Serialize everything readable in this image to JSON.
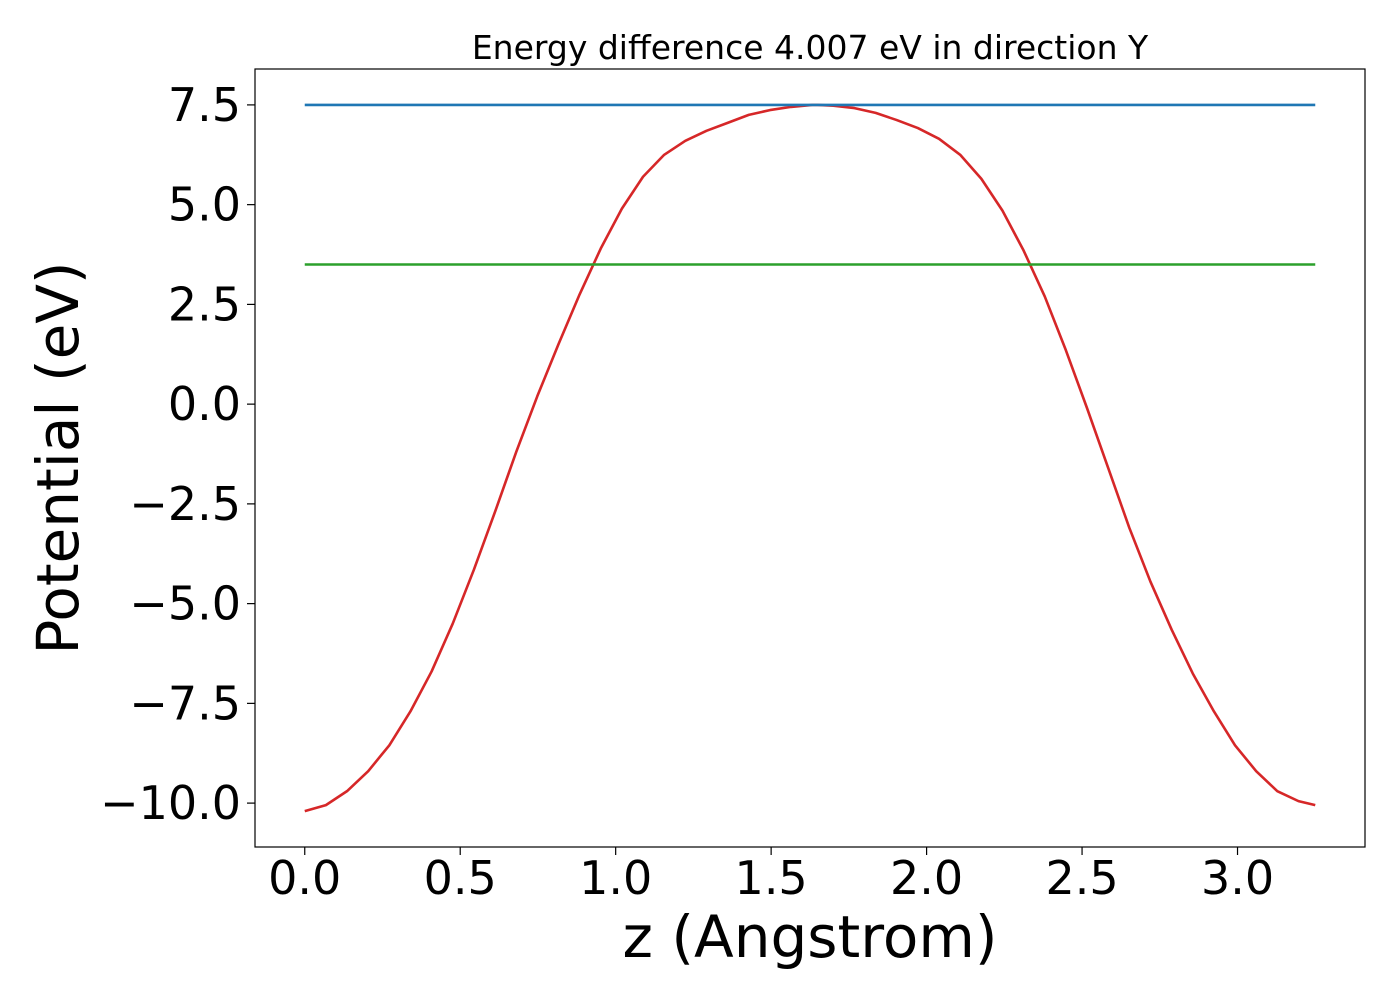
{
  "chart_data": {
    "type": "line",
    "title": "Energy difference 4.007 eV in direction Y",
    "xlabel": "z (Angstrom)",
    "ylabel": "Potential (eV)",
    "xlim": [
      -0.16,
      3.41
    ],
    "ylim": [
      -11.1,
      8.4
    ],
    "x_ticks": [
      0.0,
      0.5,
      1.0,
      1.5,
      2.0,
      2.5,
      3.0
    ],
    "x_tick_labels": [
      "0.0",
      "0.5",
      "1.0",
      "1.5",
      "2.0",
      "2.5",
      "3.0"
    ],
    "y_ticks": [
      7.5,
      5.0,
      2.5,
      0.0,
      -2.5,
      -5.0,
      -7.5,
      -10.0
    ],
    "y_tick_labels": [
      "7.5",
      "5.0",
      "2.5",
      "0.0",
      "−2.5",
      "−5.0",
      "−7.5",
      "−10.0"
    ],
    "grid": false,
    "series": [
      {
        "color": "#d62728",
        "x": [
          0.0,
          0.068,
          0.136,
          0.204,
          0.272,
          0.34,
          0.408,
          0.476,
          0.544,
          0.612,
          0.68,
          0.748,
          0.816,
          0.884,
          0.952,
          1.02,
          1.088,
          1.156,
          1.224,
          1.292,
          1.36,
          1.428,
          1.496,
          1.564,
          1.632,
          1.65,
          1.7,
          1.768,
          1.836,
          1.904,
          1.972,
          2.04,
          2.108,
          2.176,
          2.244,
          2.312,
          2.38,
          2.448,
          2.516,
          2.584,
          2.652,
          2.72,
          2.788,
          2.856,
          2.924,
          2.992,
          3.06,
          3.128,
          3.196,
          3.25
        ],
        "y": [
          -10.2,
          -10.05,
          -9.7,
          -9.2,
          -8.55,
          -7.7,
          -6.7,
          -5.5,
          -4.15,
          -2.7,
          -1.2,
          0.2,
          1.5,
          2.75,
          3.9,
          4.9,
          5.7,
          6.25,
          6.6,
          6.85,
          7.05,
          7.25,
          7.37,
          7.45,
          7.5,
          7.5,
          7.48,
          7.42,
          7.3,
          7.12,
          6.92,
          6.65,
          6.25,
          5.65,
          4.85,
          3.85,
          2.7,
          1.35,
          -0.1,
          -1.6,
          -3.1,
          -4.45,
          -5.65,
          -6.75,
          -7.7,
          -8.55,
          -9.2,
          -9.7,
          -9.95,
          -10.05
        ]
      },
      {
        "color": "#1f77b4",
        "x": [
          0.0,
          3.25
        ],
        "y": [
          7.5,
          7.5
        ]
      },
      {
        "color": "#2ca02c",
        "x": [
          0.0,
          3.25
        ],
        "y": [
          3.5,
          3.5
        ]
      }
    ]
  }
}
